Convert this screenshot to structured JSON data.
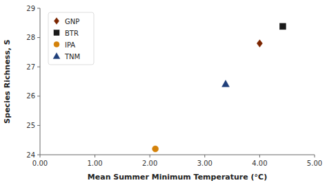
{
  "chart_data": {
    "type": "scatter",
    "xlabel": "Mean Summer Minimum Temperature (°C)",
    "ylabel": "Species Richness, S",
    "xlim": [
      0.0,
      5.0
    ],
    "ylim": [
      24.0,
      29.0
    ],
    "xticks": [
      {
        "value": 0.0,
        "label": "0.00"
      },
      {
        "value": 1.0,
        "label": "1.00"
      },
      {
        "value": 2.0,
        "label": "2.00"
      },
      {
        "value": 3.0,
        "label": "3.00"
      },
      {
        "value": 4.0,
        "label": "4.00"
      },
      {
        "value": 5.0,
        "label": "5.00"
      }
    ],
    "yticks": [
      24,
      25,
      26,
      27,
      28,
      29
    ],
    "grid": false,
    "legend": "upper left",
    "series": [
      {
        "name": "GNP",
        "x": [
          4.0
        ],
        "values": [
          27.8
        ],
        "color": "#7B2500",
        "marker": "diamond"
      },
      {
        "name": "BTR",
        "x": [
          4.42
        ],
        "values": [
          28.38
        ],
        "color": "#1a1a1a",
        "marker": "square"
      },
      {
        "name": "IPA",
        "x": [
          2.1
        ],
        "values": [
          24.2
        ],
        "color": "#D4820A",
        "marker": "circle"
      },
      {
        "name": "TNM",
        "x": [
          3.38
        ],
        "values": [
          26.42
        ],
        "color": "#1F3F7A",
        "marker": "triangle"
      }
    ]
  }
}
